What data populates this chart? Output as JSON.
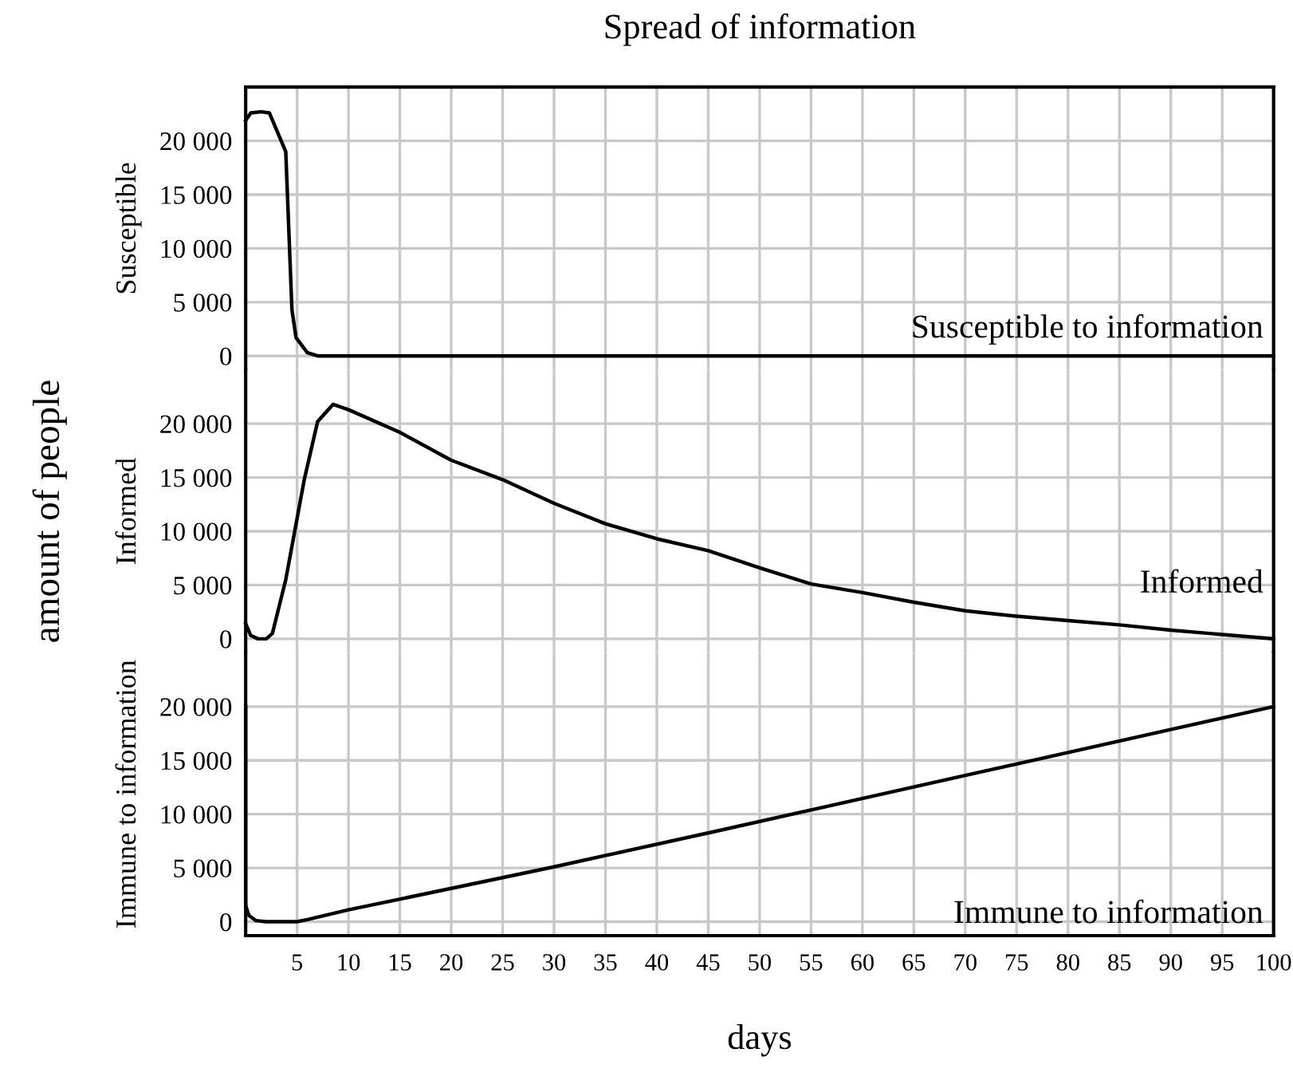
{
  "chart_data": [
    {
      "type": "line",
      "title": "Spread of information",
      "ylabel": "Susceptible",
      "xlim": [
        0,
        100
      ],
      "ylim": [
        -1300,
        25000
      ],
      "xticks": [
        5,
        10,
        15,
        20,
        25,
        30,
        35,
        40,
        45,
        50,
        55,
        60,
        65,
        70,
        75,
        80,
        85,
        90,
        95,
        100
      ],
      "yticks": [
        0,
        {
          "value": 5000,
          "label": "5 000"
        },
        {
          "value": 10000,
          "label": "10 000"
        },
        {
          "value": 15000,
          "label": "15 000"
        },
        {
          "value": 20000,
          "label": "20 000"
        }
      ],
      "tick_labels": "y",
      "grid": true,
      "legend": false,
      "series": [
        {
          "name": "Susceptible to information",
          "color": "#000000",
          "x": [
            0,
            0.5,
            1.5,
            2.3,
            3.9,
            4.5,
            4.9,
            6,
            7,
            10,
            20,
            40,
            60,
            80,
            100
          ],
          "values": [
            21900,
            22600,
            22700,
            22600,
            19000,
            4300,
            1700,
            300,
            0,
            0,
            0,
            0,
            0,
            0,
            0
          ]
        }
      ]
    },
    {
      "type": "line",
      "ylabel": "Informed",
      "annotations": [
        "amount of people"
      ],
      "xlim": [
        0,
        100
      ],
      "ylim": [
        -1300,
        25000
      ],
      "xticks": [
        5,
        10,
        15,
        20,
        25,
        30,
        35,
        40,
        45,
        50,
        55,
        60,
        65,
        70,
        75,
        80,
        85,
        90,
        95,
        100
      ],
      "yticks": [
        0,
        {
          "value": 5000,
          "label": "5 000"
        },
        {
          "value": 10000,
          "label": "10 000"
        },
        {
          "value": 15000,
          "label": "15 000"
        },
        {
          "value": 20000,
          "label": "20 000"
        }
      ],
      "tick_labels": "y",
      "grid": true,
      "legend": false,
      "series": [
        {
          "name": "Informed",
          "color": "#000000",
          "x": [
            0,
            0.5,
            1.2,
            2,
            2.6,
            3.9,
            5.7,
            7,
            8.5,
            10,
            15,
            20,
            25,
            30,
            35,
            40,
            45,
            50,
            55,
            60,
            65,
            70,
            75,
            80,
            85,
            90,
            95,
            100
          ],
          "values": [
            1400,
            300,
            0,
            0,
            500,
            5500,
            14800,
            20200,
            21800,
            21300,
            19200,
            16600,
            14800,
            12600,
            10700,
            9300,
            8200,
            6600,
            5100,
            4300,
            3400,
            2600,
            2100,
            1700,
            1300,
            800,
            400,
            0
          ]
        }
      ]
    },
    {
      "type": "line",
      "ylabel": "Immune to information",
      "xlabel": "days",
      "xlim": [
        0,
        100
      ],
      "ylim": [
        -1300,
        25000
      ],
      "xticks": [
        5,
        10,
        15,
        20,
        25,
        30,
        35,
        40,
        45,
        50,
        55,
        60,
        65,
        70,
        75,
        80,
        85,
        90,
        95,
        100
      ],
      "yticks": [
        0,
        {
          "value": 5000,
          "label": "5 000"
        },
        {
          "value": 10000,
          "label": "10 000"
        },
        {
          "value": 15000,
          "label": "15 000"
        },
        {
          "value": 20000,
          "label": "20 000"
        }
      ],
      "grid": true,
      "legend": false,
      "series": [
        {
          "name": "Immune to information",
          "color": "#000000",
          "x": [
            0,
            0,
            0.3,
            1,
            2,
            5,
            6,
            10,
            20,
            30,
            45.7,
            70,
            100
          ],
          "values": [
            20000,
            1500,
            600,
            100,
            0,
            0,
            200,
            1100,
            3100,
            5100,
            8400,
            13600,
            20000
          ]
        }
      ]
    }
  ]
}
